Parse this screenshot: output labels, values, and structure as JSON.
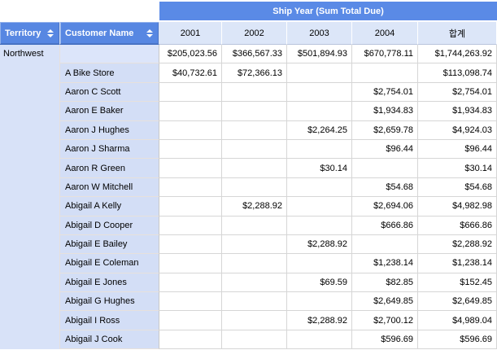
{
  "banner": {
    "title": "Ship Year (Sum Total Due)"
  },
  "fields": [
    {
      "label": "Territory",
      "sortable": true
    },
    {
      "label": "Customer Name",
      "sortable": true
    }
  ],
  "column_headers": [
    "2001",
    "2002",
    "2003",
    "2004",
    "합계"
  ],
  "territory_group": "Northwest",
  "rows": [
    {
      "customer": "",
      "is_total_row": true,
      "values": [
        "$205,023.56",
        "$366,567.33",
        "$501,894.93",
        "$670,778.11",
        "$1,744,263.92"
      ]
    },
    {
      "customer": "A Bike Store",
      "values": [
        "$40,732.61",
        "$72,366.13",
        "",
        "",
        "$113,098.74"
      ]
    },
    {
      "customer": "Aaron C Scott",
      "values": [
        "",
        "",
        "",
        "$2,754.01",
        "$2,754.01"
      ]
    },
    {
      "customer": "Aaron E Baker",
      "values": [
        "",
        "",
        "",
        "$1,934.83",
        "$1,934.83"
      ]
    },
    {
      "customer": "Aaron J Hughes",
      "values": [
        "",
        "",
        "$2,264.25",
        "$2,659.78",
        "$4,924.03"
      ]
    },
    {
      "customer": "Aaron J Sharma",
      "values": [
        "",
        "",
        "",
        "$96.44",
        "$96.44"
      ]
    },
    {
      "customer": "Aaron R Green",
      "values": [
        "",
        "",
        "$30.14",
        "",
        "$30.14"
      ]
    },
    {
      "customer": "Aaron W Mitchell",
      "values": [
        "",
        "",
        "",
        "$54.68",
        "$54.68"
      ]
    },
    {
      "customer": "Abigail A Kelly",
      "values": [
        "",
        "$2,288.92",
        "",
        "$2,694.06",
        "$4,982.98"
      ]
    },
    {
      "customer": "Abigail D Cooper",
      "values": [
        "",
        "",
        "",
        "$666.86",
        "$666.86"
      ]
    },
    {
      "customer": "Abigail E Bailey",
      "values": [
        "",
        "",
        "$2,288.92",
        "",
        "$2,288.92"
      ]
    },
    {
      "customer": "Abigail E Coleman",
      "values": [
        "",
        "",
        "",
        "$1,238.14",
        "$1,238.14"
      ]
    },
    {
      "customer": "Abigail E Jones",
      "values": [
        "",
        "",
        "$69.59",
        "$82.85",
        "$152.45"
      ]
    },
    {
      "customer": "Abigail G Hughes",
      "values": [
        "",
        "",
        "",
        "$2,649.85",
        "$2,649.85"
      ]
    },
    {
      "customer": "Abigail I Ross",
      "values": [
        "",
        "",
        "$2,288.92",
        "$2,700.12",
        "$4,989.04"
      ]
    },
    {
      "customer": "Abigail J Cook",
      "values": [
        "",
        "",
        "",
        "$596.69",
        "$596.69"
      ]
    }
  ],
  "colors": {
    "banner_blue": "#5a8ae6",
    "header_blue": "#5787e2",
    "column_header_bg": "#dce6f8",
    "row_header_bg": "#d3def6",
    "row_header_total_bg": "#dce5fa",
    "territory_bg": "#d8e2f8",
    "grid_line": "#d6d6d6",
    "row_header_line": "#e7e1dc"
  }
}
